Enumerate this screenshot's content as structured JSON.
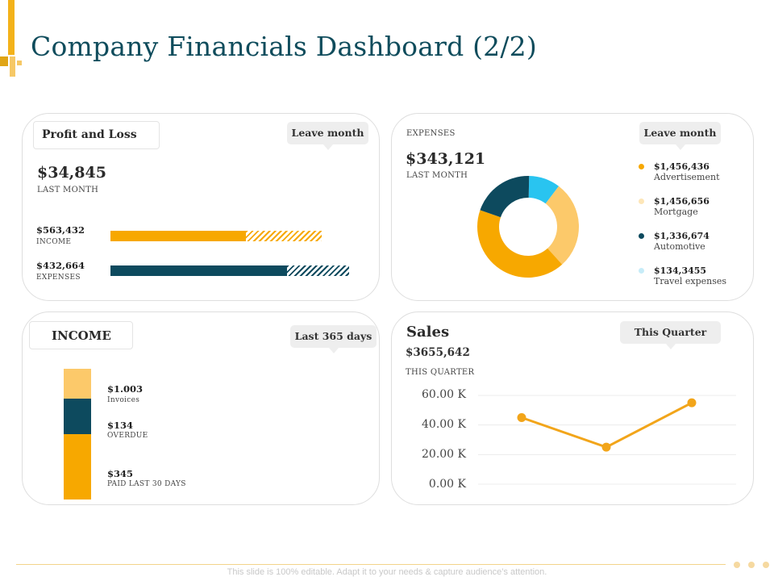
{
  "title": "Company Financials Dashboard (2/2)",
  "colors": {
    "orange": "#f7a800",
    "light_orange": "#fcc96a",
    "teal": "#0d4a5e",
    "light_blue": "#29c4f0",
    "title": "#0f4c5c"
  },
  "profit_loss": {
    "header": "Profit and Loss",
    "callout": "Leave month",
    "total": "$34,845",
    "total_label": "LAST MONTH",
    "bars": [
      {
        "value": "$563,432",
        "label": "INCOME",
        "solid_fraction": 0.64,
        "hatch_fraction": 0.36
      },
      {
        "value": "$432,664",
        "label": "EXPENSES",
        "solid_fraction": 0.74,
        "hatch_fraction": 0.26
      }
    ]
  },
  "expenses": {
    "header": "EXPENSES",
    "callout": "Leave month",
    "total": "$343,121",
    "total_label": "LAST MONTH",
    "legend": [
      {
        "value": "$1,456,436",
        "label": "Advertisement",
        "color": "#f7a800"
      },
      {
        "value": "$1,456,656",
        "label": "Mortgage",
        "color": "#fde6b8"
      },
      {
        "value": "$1,336,674",
        "label": "Automotive",
        "color": "#0d4a5e"
      },
      {
        "value": "$134,3455",
        "label": "Travel expenses",
        "color": "#c7ecf8"
      }
    ]
  },
  "income": {
    "header": "INCOME",
    "callout": "Last 365 days",
    "items": [
      {
        "value": "$1.003",
        "label": "Invoices"
      },
      {
        "value": "$134",
        "label": "OVERDUE"
      },
      {
        "value": "$345",
        "label": "PAID LAST 30 DAYS"
      }
    ]
  },
  "sales": {
    "header": "Sales",
    "callout": "This Quarter",
    "total": "$3655,642",
    "total_label": "THIS QUARTER",
    "yticks": [
      "60.00 K",
      "40.00 K",
      "20.00 K",
      "0.00 K"
    ]
  },
  "chart_data": [
    {
      "type": "pie",
      "labels": [
        "Travel expenses",
        "Mortgage",
        "Advertisement",
        "Automotive"
      ],
      "values": [
        10,
        28,
        42,
        20
      ],
      "colors": [
        "#29c4f0",
        "#fcc96a",
        "#f7a800",
        "#0d4a5e"
      ]
    },
    {
      "type": "bar",
      "categories": [
        "Invoices",
        "OVERDUE",
        "PAID LAST 30 DAYS"
      ],
      "values": [
        1.003,
        134,
        345
      ],
      "colors": [
        "#fcc96a",
        "#0d4a5e",
        "#f7a800"
      ]
    },
    {
      "type": "line",
      "x": [
        1,
        2,
        3
      ],
      "values": [
        45,
        25,
        55
      ],
      "ylim": [
        0,
        60
      ],
      "grid": true,
      "color": "#f2a51a"
    }
  ],
  "footer": "This slide is 100% editable. Adapt it to your needs & capture audience’s attention."
}
